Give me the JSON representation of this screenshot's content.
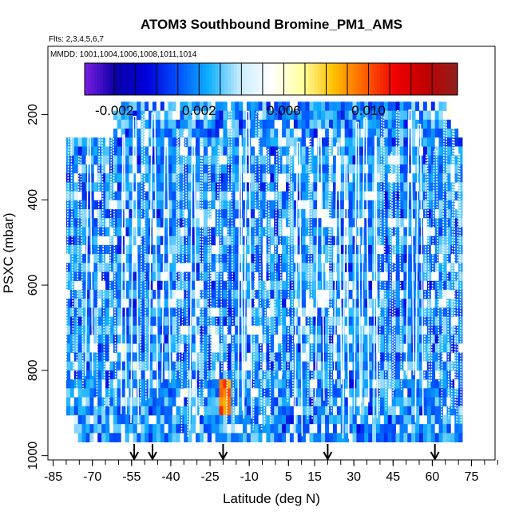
{
  "chart_data": {
    "type": "heatmap",
    "title": "ATOM3 Southbound Bromine_PM1_AMS",
    "notes": {
      "flights": "Flts: 2,3,4,5,6,7",
      "dates": "MMDD: 1001,1004,1006,1008,1011,1014"
    },
    "xlabel": "Latitude (deg N)",
    "ylabel": "PSXC (mbar)",
    "xlim": [
      -87,
      84
    ],
    "ylim": [
      1010,
      40
    ],
    "x_ticks": [
      -85,
      -70,
      -55,
      -40,
      -25,
      -10,
      5,
      15,
      30,
      45,
      60,
      75
    ],
    "y_ticks": [
      200,
      400,
      600,
      800,
      1000
    ],
    "colorbar": {
      "range": [
        -0.0034,
        0.0142
      ],
      "ticks": [
        -0.002,
        0.002,
        0.006,
        0.01
      ],
      "tick_labels": [
        "-0.002",
        "0.002",
        "0.006",
        "0.010"
      ],
      "colors": [
        "#7a1de0",
        "#0a00a8",
        "#0000d8",
        "#0050ff",
        "#10b0ff",
        "#c8ecff",
        "#ffffff",
        "#ffffa0",
        "#ffc000",
        "#ff6000",
        "#f00000",
        "#c00000",
        "#902020"
      ]
    },
    "arrows_latitude": [
      -54,
      -47,
      -20,
      20,
      61
    ],
    "coverage": {
      "lat_range": [
        -80,
        71
      ],
      "pressure_range": [
        170,
        960
      ]
    }
  }
}
